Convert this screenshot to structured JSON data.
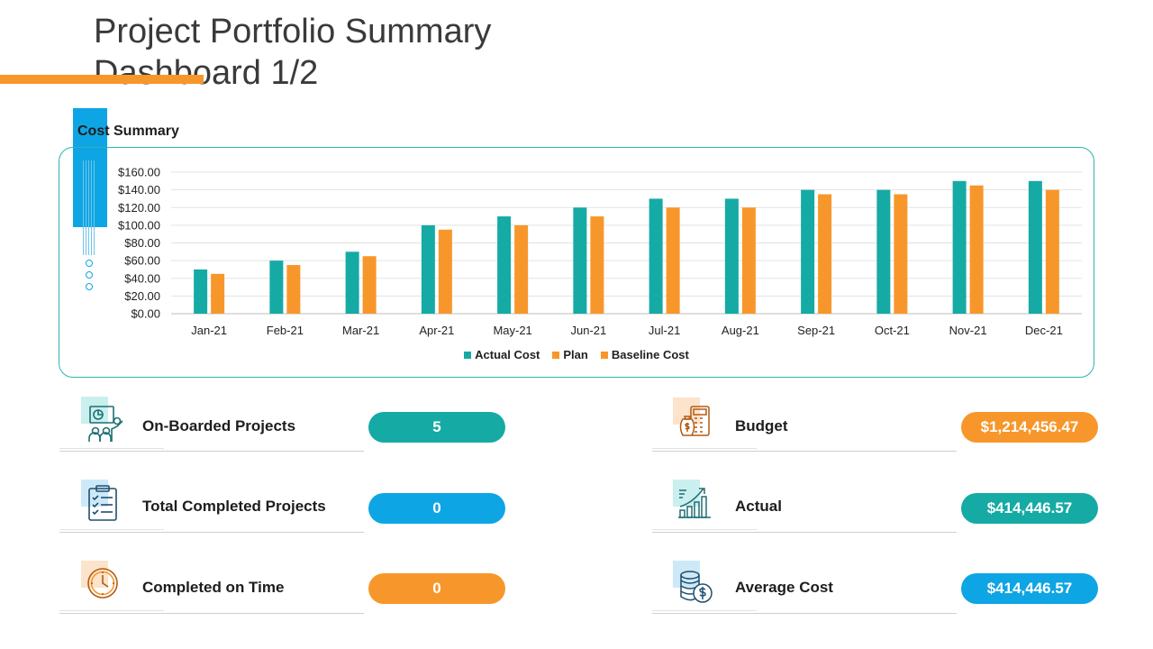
{
  "page": {
    "title": "Project Portfolio Summary Dashboard 1/2"
  },
  "colors": {
    "teal": "#16aaa5",
    "orange": "#f7972b",
    "blue": "#0ea5e4"
  },
  "cost_summary": {
    "label": "Cost Summary"
  },
  "chart_data": {
    "type": "bar",
    "title": "",
    "xlabel": "",
    "ylabel": "",
    "categories": [
      "Jan-21",
      "Feb-21",
      "Mar-21",
      "Apr-21",
      "May-21",
      "Jun-21",
      "Jul-21",
      "Aug-21",
      "Sep-21",
      "Oct-21",
      "Nov-21",
      "Dec-21"
    ],
    "series": [
      {
        "name": "Actual Cost",
        "color": "#16aaa5",
        "values": [
          50,
          60,
          70,
          100,
          110,
          120,
          130,
          130,
          140,
          140,
          150,
          150
        ]
      },
      {
        "name": "Plan",
        "color": "#f7972b",
        "values": [
          45,
          55,
          65,
          95,
          100,
          110,
          120,
          120,
          135,
          135,
          145,
          140
        ]
      },
      {
        "name": "Baseline Cost",
        "color": "#f7972b",
        "values": [
          0,
          0,
          0,
          0,
          0,
          0,
          0,
          0,
          0,
          0,
          0,
          0
        ]
      }
    ],
    "ylim": [
      0,
      160
    ],
    "yticks": [
      "$0.00",
      "$20.00",
      "$40.00",
      "$60.00",
      "$80.00",
      "$100.00",
      "$120.00",
      "$140.00",
      "$160.00"
    ],
    "grid": true,
    "legend": "bottom"
  },
  "kpis": {
    "onboarded": {
      "label": "On-Boarded Projects",
      "value": "5",
      "icon": "presentation-team-icon"
    },
    "completed": {
      "label": "Total Completed Projects",
      "value": "0",
      "icon": "checklist-icon"
    },
    "on_time": {
      "label": "Completed on Time",
      "value": "0",
      "icon": "clock-icon"
    },
    "budget": {
      "label": "Budget",
      "value": "$1,214,456.47",
      "icon": "money-calculator-icon"
    },
    "actual": {
      "label": "Actual",
      "value": "$414,446.57",
      "icon": "growth-chart-icon"
    },
    "average": {
      "label": "Average Cost",
      "value": "$414,446.57",
      "icon": "coins-icon"
    }
  }
}
